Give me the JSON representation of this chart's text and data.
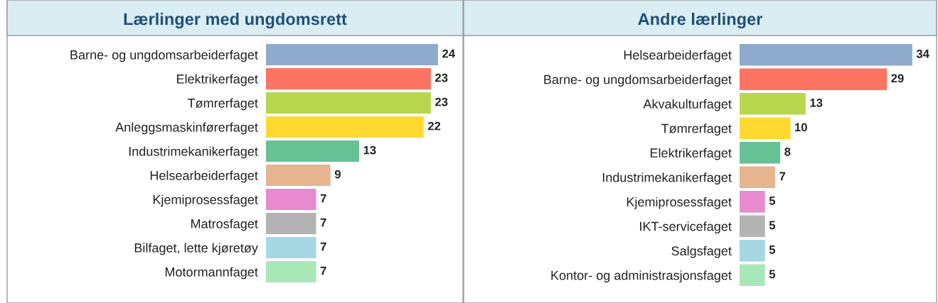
{
  "chart_data": [
    {
      "type": "bar",
      "orientation": "horizontal",
      "title": "Lærlinger med ungdomsrett",
      "data_labels": true,
      "categories": [
        "Barne- og ungdomsarbeiderfaget",
        "Elektrikerfaget",
        "Tømrerfaget",
        "Anleggsmaskinførerfaget",
        "Industrimekanikerfaget",
        "Helsearbeiderfaget",
        "Kjemiprosessfaget",
        "Matrosfaget",
        "Bilfaget, lette kjøretøy",
        "Motormannfaget"
      ],
      "values": [
        24,
        23,
        23,
        22,
        13,
        9,
        7,
        7,
        7,
        7
      ],
      "colors": [
        "#8eaacc",
        "#fe7462",
        "#b8d64e",
        "#ffd92f",
        "#66c194",
        "#e5b590",
        "#e78ad0",
        "#b3b3b3",
        "#a6d8e3",
        "#a8e8b8"
      ]
    },
    {
      "type": "bar",
      "orientation": "horizontal",
      "title": "Andre lærlinger",
      "data_labels": true,
      "categories": [
        "Helsearbeiderfaget",
        "Barne- og ungdomsarbeiderfaget",
        "Akvakulturfaget",
        "Tømrerfaget",
        "Elektrikerfaget",
        "Industrimekanikerfaget",
        "Kjemiprosessfaget",
        "IKT-servicefaget",
        "Salgsfaget",
        "Kontor- og administrasjonsfaget"
      ],
      "values": [
        34,
        29,
        13,
        10,
        8,
        7,
        5,
        5,
        5,
        5
      ],
      "colors": [
        "#8eaacc",
        "#fe7462",
        "#b8d64e",
        "#ffd92f",
        "#66c194",
        "#e5b590",
        "#e78ad0",
        "#b3b3b3",
        "#a6d8e3",
        "#a8e8b8"
      ]
    }
  ]
}
